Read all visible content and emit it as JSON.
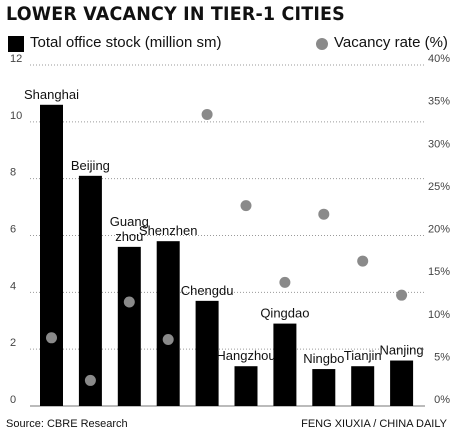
{
  "title": "LOWER VACANCY IN TIER-1 CITIES",
  "legend": {
    "bar_label": "Total office stock (million sm)",
    "dot_label": "Vacancy rate (%)"
  },
  "footer": {
    "source": "Source: CBRE Research",
    "credit": "FENG XIUXIA / CHINA DAILY"
  },
  "chart_data": {
    "type": "bar",
    "categories": [
      "Shanghai",
      "Beijing",
      "Guangzhou",
      "Shenzhen",
      "Chengdu",
      "Hangzhou",
      "Qingdao",
      "Ningbo",
      "Tianjin",
      "Nanjing"
    ],
    "category_labels": [
      [
        "Shanghai"
      ],
      [
        "Beijing"
      ],
      [
        "Guang",
        "zhou"
      ],
      [
        "Shenzhen"
      ],
      [
        "Chengdu"
      ],
      [
        "Hangzhou"
      ],
      [
        "Qingdao"
      ],
      [
        "Ningbo"
      ],
      [
        "Tianjin"
      ],
      [
        "Nanjing"
      ]
    ],
    "series": [
      {
        "name": "Total office stock (million sm)",
        "axis": "left",
        "kind": "bar",
        "values": [
          10.6,
          8.1,
          5.6,
          5.8,
          3.7,
          1.4,
          2.9,
          1.3,
          1.4,
          1.6
        ]
      },
      {
        "name": "Vacancy rate (%)",
        "axis": "right",
        "kind": "dot",
        "values": [
          8.0,
          3.0,
          12.2,
          7.8,
          34.2,
          23.5,
          14.5,
          22.5,
          17.0,
          13.0
        ]
      }
    ],
    "y_left": {
      "min": 0,
      "max": 12,
      "ticks": [
        0,
        2,
        4,
        6,
        8,
        10,
        12
      ]
    },
    "y_right": {
      "min": 0,
      "max": 40,
      "ticks": [
        "0%",
        "5%",
        "10%",
        "15%",
        "20%",
        "25%",
        "30%",
        "35%",
        "40%"
      ]
    },
    "grid": "dotted horizontal",
    "legend_position": "top",
    "colors": {
      "bar": "#000000",
      "dot": "#8a8a8a",
      "grid": "#9a9a9a"
    }
  }
}
